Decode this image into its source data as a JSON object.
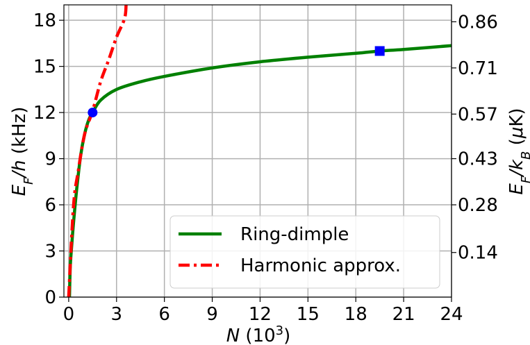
{
  "chart_data": {
    "type": "line",
    "xlabel": "N (10³)",
    "ylabel": "E_F/h (kHz)",
    "ylabel_right": "E_F/k_B (μK)",
    "xlim": [
      -0.3,
      24
    ],
    "ylim": [
      0,
      19
    ],
    "xticks": [
      0,
      3,
      6,
      9,
      12,
      15,
      18,
      21,
      24
    ],
    "yticks": [
      0,
      3,
      6,
      9,
      12,
      15,
      18
    ],
    "right_ticks": [
      {
        "y": 2.9,
        "label": "0.14"
      },
      {
        "y": 6.0,
        "label": "0.28"
      },
      {
        "y": 9.0,
        "label": "0.43"
      },
      {
        "y": 11.9,
        "label": "0.57"
      },
      {
        "y": 14.9,
        "label": "0.71"
      },
      {
        "y": 17.9,
        "label": "0.86"
      }
    ],
    "grid": true,
    "legend_position": "lower-right",
    "series": [
      {
        "name": "Ring-dimple",
        "color": "#008000",
        "style": "solid",
        "points": [
          [
            0.05,
            0.0
          ],
          [
            0.1,
            2.0
          ],
          [
            0.2,
            3.5
          ],
          [
            0.3,
            4.8
          ],
          [
            0.5,
            7.0
          ],
          [
            0.75,
            9.2
          ],
          [
            1.0,
            10.6
          ],
          [
            1.25,
            11.5
          ],
          [
            1.5,
            12.0
          ],
          [
            2.0,
            12.8
          ],
          [
            3.0,
            13.5
          ],
          [
            4.5,
            14.0
          ],
          [
            6.0,
            14.35
          ],
          [
            9.0,
            14.9
          ],
          [
            12.0,
            15.3
          ],
          [
            15.0,
            15.6
          ],
          [
            18.0,
            15.85
          ],
          [
            19.5,
            16.0
          ],
          [
            21.0,
            16.1
          ],
          [
            24.0,
            16.35
          ]
        ]
      },
      {
        "name": "Harmonic approx.",
        "color": "#ff0000",
        "style": "dashdot",
        "points": [
          [
            0.0,
            0.0
          ],
          [
            0.3,
            5.9
          ],
          [
            0.6,
            8.2
          ],
          [
            1.0,
            10.6
          ],
          [
            1.5,
            12.1
          ],
          [
            2.0,
            14.0
          ],
          [
            2.5,
            15.4
          ],
          [
            3.0,
            16.9
          ],
          [
            3.5,
            18.1
          ],
          [
            3.6,
            19.0
          ]
        ]
      }
    ],
    "markers": [
      {
        "shape": "circle",
        "color": "#0000ff",
        "x": 1.5,
        "y": 12.0
      },
      {
        "shape": "square",
        "color": "#0000ff",
        "x": 19.5,
        "y": 16.0
      }
    ]
  }
}
